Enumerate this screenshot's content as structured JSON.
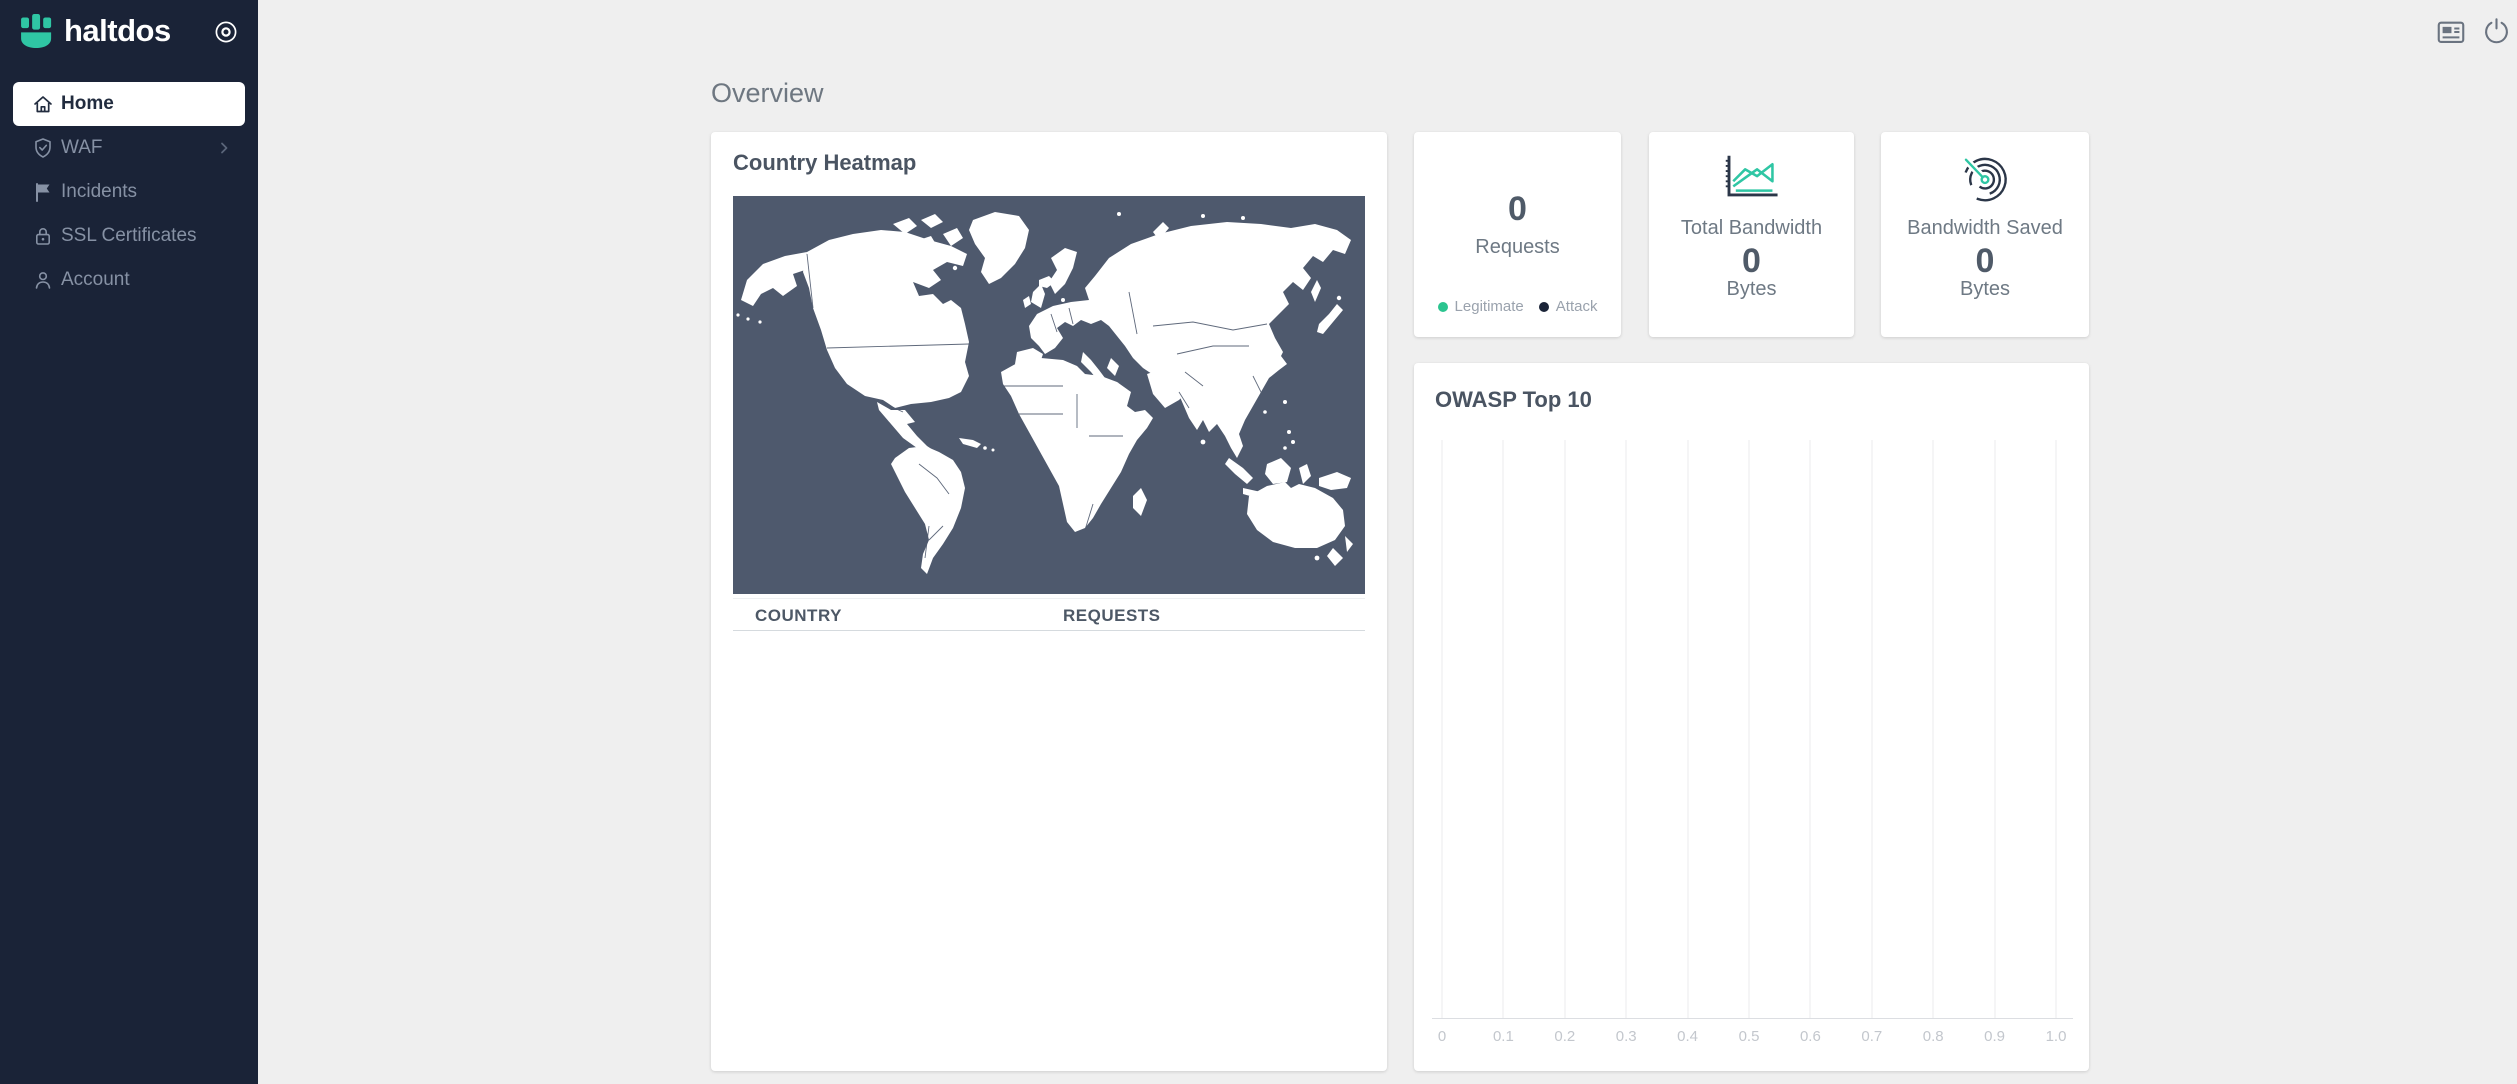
{
  "colors": {
    "sidebar_bg": "#1a2337",
    "accent_teal": "#2fc6a4",
    "legend_legitimate_dot": "#2bc48f",
    "legend_attack_dot": "#1a2337",
    "map_background": "#4e596d",
    "page_background": "#efefef",
    "card_background": "#ffffff"
  },
  "sidebar": {
    "logo_text": "haltdos",
    "toggle_icon": "circle-dot-icon",
    "items": [
      {
        "label": "Home",
        "icon": "home-icon",
        "active": true
      },
      {
        "label": "WAF",
        "icon": "shield-icon",
        "has_submenu": true
      },
      {
        "label": "Incidents",
        "icon": "flag-icon"
      },
      {
        "label": "SSL Certificates",
        "icon": "lock-icon"
      },
      {
        "label": "Account",
        "icon": "user-icon"
      }
    ]
  },
  "topbar": {
    "icons": [
      {
        "name": "news-icon"
      },
      {
        "name": "power-icon"
      }
    ]
  },
  "main": {
    "page_title": "Overview",
    "country_heatmap": {
      "title": "Country Heatmap",
      "table": {
        "columns": [
          "COUNTRY",
          "REQUESTS"
        ],
        "rows": []
      }
    },
    "stat_cards": [
      {
        "value": "0",
        "label": "Requests",
        "legend": [
          {
            "label": "Legitimate"
          },
          {
            "label": "Attack"
          }
        ]
      },
      {
        "icon": "area-chart-icon",
        "label": "Total Bandwidth",
        "value": "0",
        "unit": "Bytes"
      },
      {
        "icon": "radar-icon",
        "label": "Bandwidth Saved",
        "value": "0",
        "unit": "Bytes"
      }
    ],
    "owasp": {
      "title": "OWASP Top 10",
      "chart_data": {
        "type": "bar",
        "orientation": "horizontal",
        "title": "OWASP Top 10",
        "categories": [],
        "values": [],
        "xlim": [
          0,
          1
        ],
        "x_tick_labels": [
          "0",
          "0.1",
          "0.2",
          "0.3",
          "0.4",
          "0.5",
          "0.6",
          "0.7",
          "0.8",
          "0.9",
          "1.0"
        ],
        "grid": "vertical-gridlines-only",
        "legend_position": "none"
      }
    }
  }
}
